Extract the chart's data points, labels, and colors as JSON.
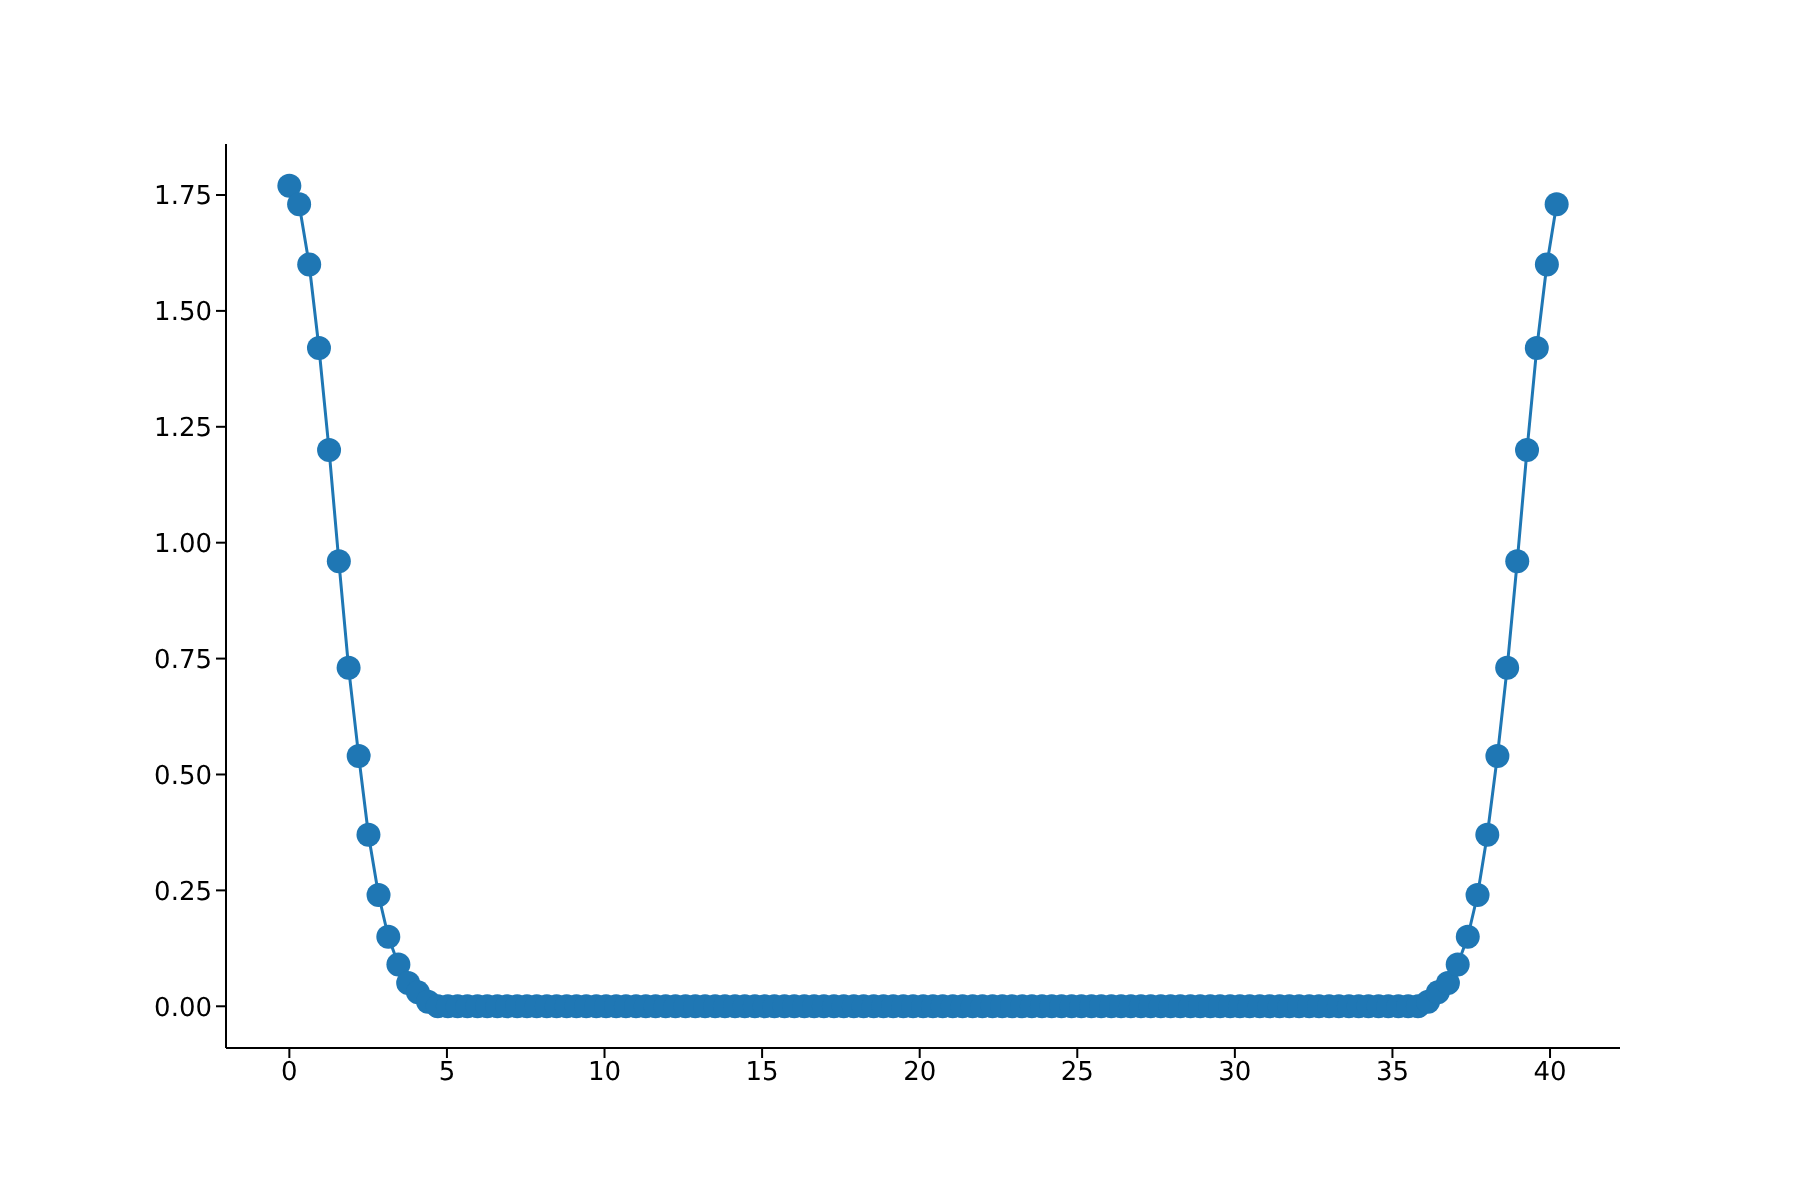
{
  "chart_data": {
    "type": "line",
    "marker": "circle",
    "line_style": "solid",
    "grid": false,
    "xlim": [
      -2.01,
      42.22
    ],
    "ylim": [
      -0.09,
      1.86
    ],
    "xticks": [
      0,
      5,
      10,
      15,
      20,
      25,
      30,
      35,
      40
    ],
    "yticks": [
      {
        "value": 0,
        "label": "0.00"
      },
      {
        "value": 0.25,
        "label": "0.25"
      },
      {
        "value": 0.5,
        "label": "0.50"
      },
      {
        "value": 0.75,
        "label": "0.75"
      },
      {
        "value": 1,
        "label": "1.00"
      },
      {
        "value": 1.25,
        "label": "1.25"
      },
      {
        "value": 1.5,
        "label": "1.50"
      },
      {
        "value": 1.75,
        "label": "1.75"
      }
    ],
    "x": [
      0,
      0.31,
      0.63,
      0.94,
      1.26,
      1.57,
      1.88,
      2.2,
      2.51,
      2.83,
      3.14,
      3.46,
      3.77,
      4.08,
      4.4,
      4.71,
      5.03,
      5.34,
      5.65,
      5.97,
      6.28,
      6.6,
      6.91,
      7.23,
      7.54,
      7.85,
      8.17,
      8.48,
      8.8,
      9.11,
      9.42,
      9.74,
      10.05,
      10.37,
      10.68,
      11,
      11.31,
      11.62,
      11.94,
      12.25,
      12.57,
      12.88,
      13.19,
      13.51,
      13.82,
      14.14,
      14.45,
      14.77,
      15.08,
      15.39,
      15.71,
      16.02,
      16.34,
      16.65,
      16.96,
      17.28,
      17.59,
      17.91,
      18.22,
      18.54,
      18.85,
      19.16,
      19.48,
      19.79,
      20.11,
      20.42,
      20.73,
      21.05,
      21.36,
      21.68,
      21.99,
      22.31,
      22.62,
      22.93,
      23.25,
      23.56,
      23.88,
      24.19,
      24.5,
      24.82,
      25.13,
      25.45,
      25.76,
      26.08,
      26.39,
      26.7,
      27.02,
      27.33,
      27.65,
      27.96,
      28.27,
      28.59,
      28.9,
      29.22,
      29.53,
      29.85,
      30.16,
      30.47,
      30.79,
      31.1,
      31.42,
      31.73,
      32.04,
      32.36,
      32.67,
      32.99,
      33.3,
      33.62,
      33.93,
      34.24,
      34.56,
      34.87,
      35.19,
      35.5,
      35.81,
      36.13,
      36.44,
      36.76,
      37.07,
      37.39,
      37.7,
      38.01,
      38.33,
      38.64,
      38.96,
      39.27,
      39.58,
      39.9,
      40.21
    ],
    "series": [
      {
        "color": "#1f77b4",
        "values": [
          1.77,
          1.73,
          1.6,
          1.42,
          1.2,
          0.96,
          0.73,
          0.54,
          0.37,
          0.24,
          0.15,
          0.09,
          0.05,
          0.03,
          0.01,
          0,
          0,
          0,
          0,
          0,
          0,
          0,
          0,
          0,
          0,
          0,
          0,
          0,
          0,
          0,
          0,
          0,
          0,
          0,
          0,
          0,
          0,
          0,
          0,
          0,
          0,
          0,
          0,
          0,
          0,
          0,
          0,
          0,
          0,
          0,
          0,
          0,
          0,
          0,
          0,
          0,
          0,
          0,
          0,
          0,
          0,
          0,
          0,
          0,
          0,
          0,
          0,
          0,
          0,
          0,
          0,
          0,
          0,
          0,
          0,
          0,
          0,
          0,
          0,
          0,
          0,
          0,
          0,
          0,
          0,
          0,
          0,
          0,
          0,
          0,
          0,
          0,
          0,
          0,
          0,
          0,
          0,
          0,
          0,
          0,
          0,
          0,
          0,
          0,
          0,
          0,
          0,
          0,
          0,
          0,
          0,
          0,
          0,
          0,
          0,
          0.01,
          0.03,
          0.05,
          0.09,
          0.15,
          0.24,
          0.37,
          0.54,
          0.73,
          0.96,
          1.2,
          1.42,
          1.6,
          1.73
        ]
      }
    ]
  }
}
